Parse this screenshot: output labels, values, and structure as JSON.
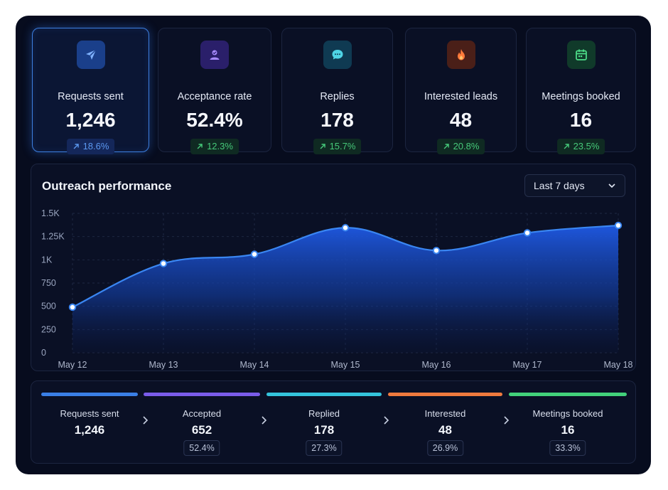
{
  "metrics": [
    {
      "label": "Requests sent",
      "value": "1,246",
      "change": "18.6%",
      "icon": "paper-plane-icon",
      "accent": "#2f6fe8",
      "tone": "blue"
    },
    {
      "label": "Acceptance rate",
      "value": "52.4%",
      "change": "12.3%",
      "icon": "user-check-icon",
      "accent": "#7d5cf0",
      "tone": "green"
    },
    {
      "label": "Replies",
      "value": "178",
      "change": "15.7%",
      "icon": "chat-bubble-icon",
      "accent": "#2ec4d8",
      "tone": "green"
    },
    {
      "label": "Interested leads",
      "value": "48",
      "change": "20.8%",
      "icon": "flame-icon",
      "accent": "#f07a3c",
      "tone": "green"
    },
    {
      "label": "Meetings booked",
      "value": "16",
      "change": "23.5%",
      "icon": "calendar-icon",
      "accent": "#3dd27a",
      "tone": "green"
    }
  ],
  "performance": {
    "title": "Outreach performance",
    "range_selected": "Last 7 days"
  },
  "chart_data": {
    "type": "area",
    "title": "Outreach performance",
    "categories": [
      "May 12",
      "May 13",
      "May 14",
      "May 15",
      "May 16",
      "May 17",
      "May 18"
    ],
    "values": [
      490,
      960,
      1060,
      1345,
      1100,
      1290,
      1370
    ],
    "ylim": [
      0,
      1500
    ],
    "yticks": [
      0,
      250,
      500,
      750,
      1000,
      1250,
      1500
    ],
    "ytick_labels": [
      "0",
      "250",
      "500",
      "750",
      "1K",
      "1.25K",
      "1.5K"
    ],
    "grid": true,
    "color": "#3a86f2"
  },
  "funnel": [
    {
      "label": "Requests sent",
      "value": "1,246",
      "pct": "",
      "color": "#3a7fe6"
    },
    {
      "label": "Accepted",
      "value": "652",
      "pct": "52.4%",
      "color": "#7a5cea"
    },
    {
      "label": "Replied",
      "value": "178",
      "pct": "27.3%",
      "color": "#34c4dc"
    },
    {
      "label": "Interested",
      "value": "48",
      "pct": "26.9%",
      "color": "#ef7a3e"
    },
    {
      "label": "Meetings booked",
      "value": "16",
      "pct": "33.3%",
      "color": "#42d17b"
    }
  ]
}
